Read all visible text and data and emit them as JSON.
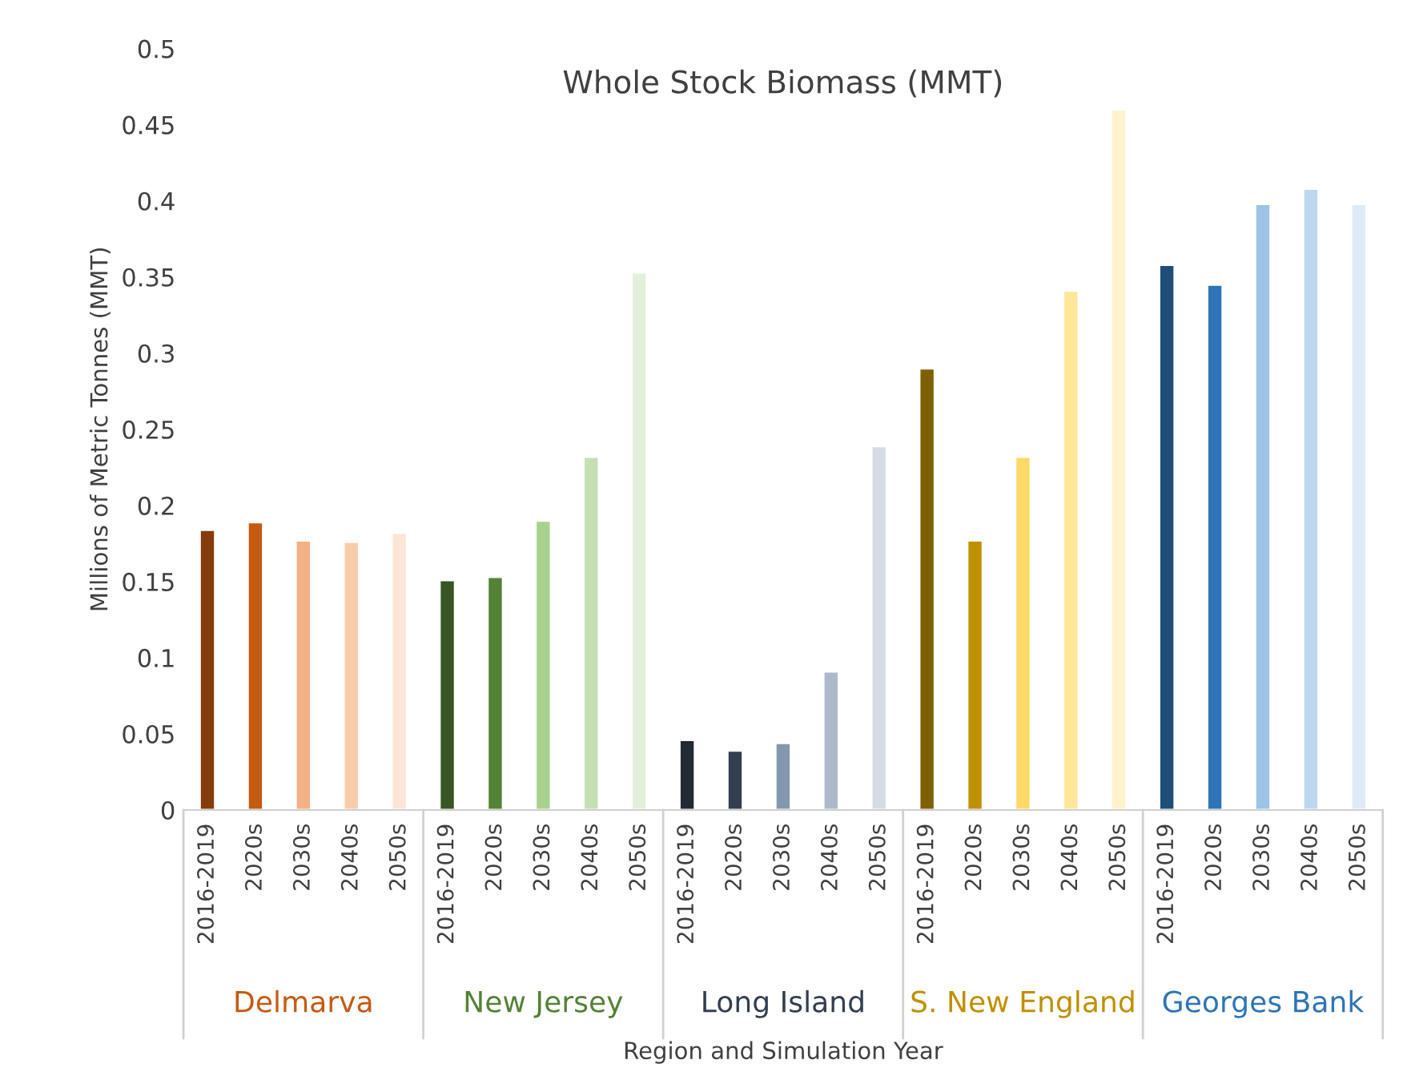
{
  "chart_data": {
    "type": "bar",
    "title": "Whole Stock Biomass (MMT)",
    "xlabel": "Region and Simulation Year",
    "ylabel": "Millions of Metric Tonnes (MMT)",
    "categories": [
      "2016-2019",
      "2020s",
      "2030s",
      "2040s",
      "2050s",
      "2016-2019",
      "2020s",
      "2030s",
      "2040s",
      "2050s",
      "2016-2019",
      "2020s",
      "2030s",
      "2040s",
      "2050s",
      "2016-2019",
      "2020s",
      "2030s",
      "2040s",
      "2050s",
      "2016-2019",
      "2020s",
      "2030s",
      "2040s",
      "2050s"
    ],
    "values": [
      0.184,
      0.189,
      0.177,
      0.176,
      0.182,
      0.151,
      0.153,
      0.19,
      0.232,
      0.353,
      0.046,
      0.039,
      0.044,
      0.091,
      0.239,
      0.29,
      0.177,
      0.232,
      0.341,
      0.46,
      0.358,
      0.345,
      0.398,
      0.408,
      0.398
    ],
    "colors": [
      "#843c0c",
      "#c55a11",
      "#f4b183",
      "#f8cbad",
      "#fbe5d6",
      "#375623",
      "#548235",
      "#a9d18e",
      "#c5e0b4",
      "#e2f0d9",
      "#222a35",
      "#333f50",
      "#8497b0",
      "#adb9ca",
      "#d6dce5",
      "#7f6000",
      "#bf9000",
      "#ffd966",
      "#ffe699",
      "#fff2cc",
      "#1f4e79",
      "#2e75b6",
      "#9dc3e6",
      "#bdd7ee",
      "#deebf7"
    ],
    "annotations": [
      "Delmarva",
      "New Jersey",
      "Long Island",
      "S. New England",
      "Georges Bank"
    ],
    "ylim": [
      0,
      0.5
    ],
    "yticks": [
      0,
      0.05,
      0.1,
      0.15,
      0.2,
      0.25,
      0.3,
      0.35,
      0.4,
      0.45,
      0.5
    ],
    "grid": false,
    "legend": false
  }
}
